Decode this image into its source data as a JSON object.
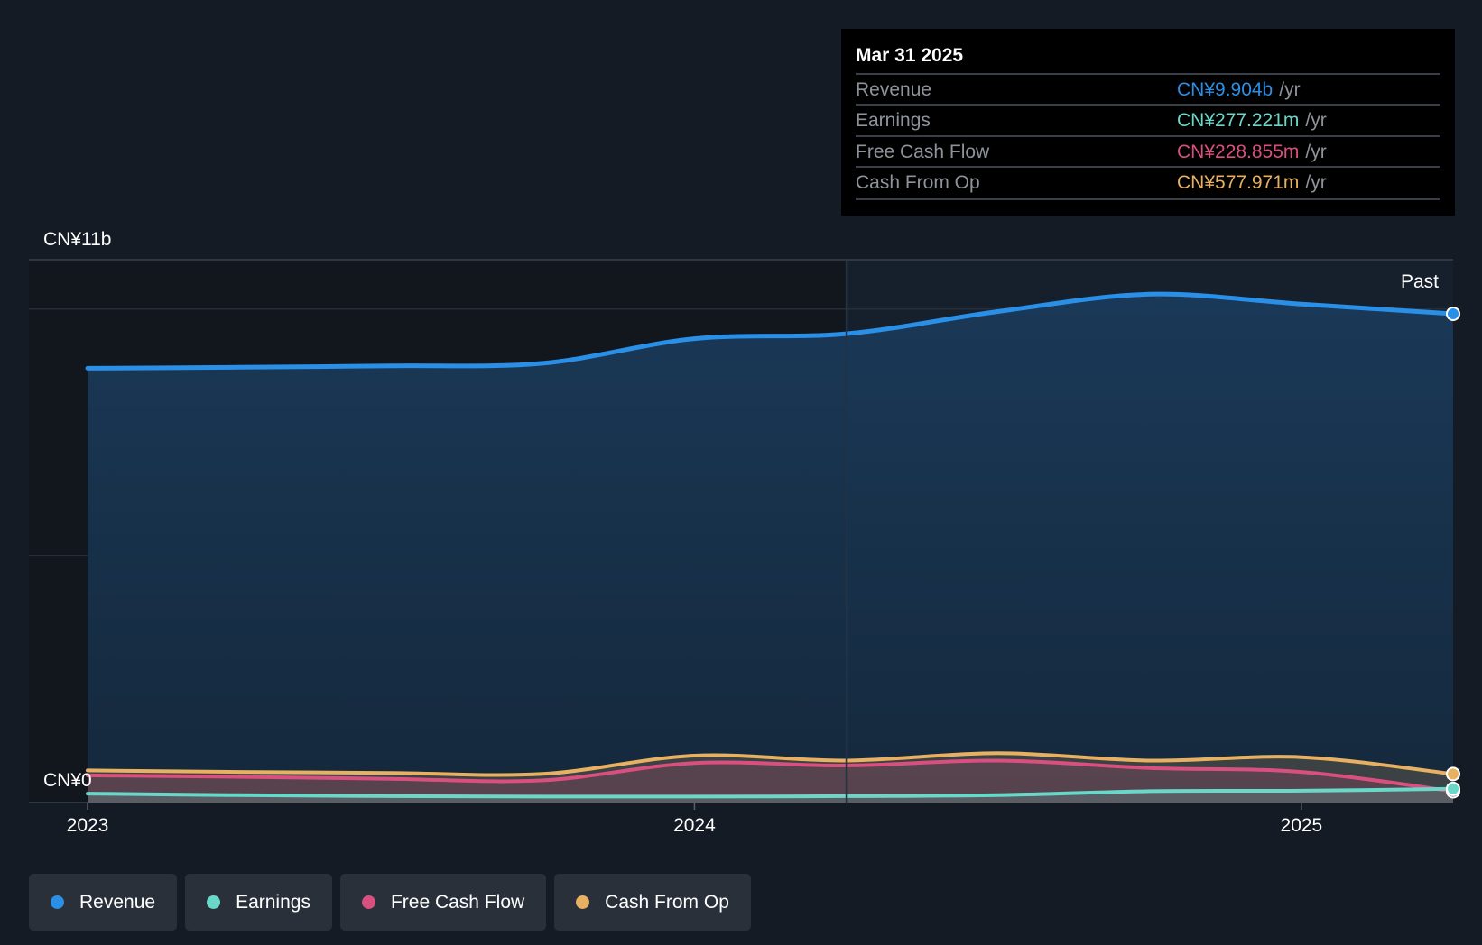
{
  "chart_data": {
    "type": "area",
    "y_axis": {
      "top_label": "CN¥11b",
      "bottom_label": "CN¥0",
      "ylim": [
        0,
        11
      ]
    },
    "x_axis": {
      "ticks": [
        "2023",
        "2024",
        "2025"
      ],
      "tick_values": [
        2023.0,
        2024.0,
        2025.0
      ],
      "xlim": [
        2022.9,
        2025.25
      ]
    },
    "past_label": "Past",
    "past_divider_x": 2024.25,
    "x": [
      2023.0,
      2023.25,
      2023.5,
      2023.75,
      2024.0,
      2024.25,
      2024.5,
      2024.75,
      2025.0,
      2025.25
    ],
    "series": [
      {
        "name": "Revenue",
        "color": "#2a8fe6",
        "values": [
          8.8,
          8.82,
          8.85,
          8.9,
          9.4,
          9.5,
          9.95,
          10.3,
          10.1,
          9.904
        ]
      },
      {
        "name": "Earnings",
        "color": "#6ad8c8",
        "values": [
          0.18,
          0.15,
          0.13,
          0.12,
          0.12,
          0.13,
          0.15,
          0.23,
          0.24,
          0.277
        ]
      },
      {
        "name": "Free Cash Flow",
        "color": "#d9507e",
        "values": [
          0.55,
          0.52,
          0.48,
          0.45,
          0.8,
          0.75,
          0.85,
          0.7,
          0.62,
          0.228855
        ]
      },
      {
        "name": "Cash From Op",
        "color": "#e8b162",
        "values": [
          0.65,
          0.62,
          0.6,
          0.58,
          0.95,
          0.85,
          1.0,
          0.85,
          0.92,
          0.577971
        ]
      }
    ]
  },
  "tooltip": {
    "date": "Mar 31 2025",
    "rows": [
      {
        "label": "Revenue",
        "value": "CN¥9.904b",
        "unit": "/yr",
        "color": "#2a8fe6"
      },
      {
        "label": "Earnings",
        "value": "CN¥277.221m",
        "unit": "/yr",
        "color": "#6ad8c8"
      },
      {
        "label": "Free Cash Flow",
        "value": "CN¥228.855m",
        "unit": "/yr",
        "color": "#d9507e"
      },
      {
        "label": "Cash From Op",
        "value": "CN¥577.971m",
        "unit": "/yr",
        "color": "#e8b162"
      }
    ]
  },
  "legend": [
    {
      "label": "Revenue",
      "color": "#2a8fe6"
    },
    {
      "label": "Earnings",
      "color": "#6ad8c8"
    },
    {
      "label": "Free Cash Flow",
      "color": "#d9507e"
    },
    {
      "label": "Cash From Op",
      "color": "#e8b162"
    }
  ]
}
